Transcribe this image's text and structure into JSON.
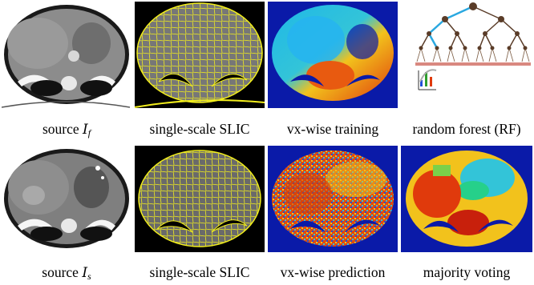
{
  "figure": {
    "row1": {
      "captions": [
        {
          "prefix": "source ",
          "var": "I",
          "sub": "f"
        },
        {
          "text": "single-scale SLIC"
        },
        {
          "text": "vx-wise training"
        },
        {
          "text": "random forest (RF)"
        }
      ]
    },
    "row2": {
      "captions": [
        {
          "prefix": "source ",
          "var": "I",
          "sub": "s"
        },
        {
          "text": "single-scale SLIC"
        },
        {
          "text": "vx-wise prediction"
        },
        {
          "text": "majority voting"
        }
      ]
    }
  },
  "colors": {
    "slic_line": "#f2ee1c",
    "background_black": "#000000",
    "label_blue": "#0a1aa8",
    "tree_branch": "#5a3c28",
    "tree_highlight": "#2aa8e0"
  }
}
